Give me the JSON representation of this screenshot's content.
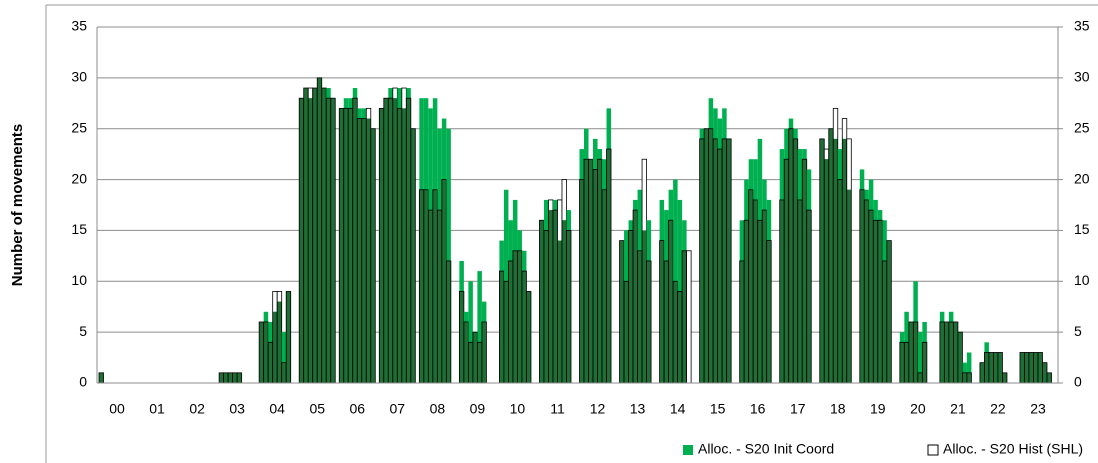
{
  "chart_data": {
    "type": "bar",
    "y_label": "Number of movements",
    "categories": [
      "00",
      "01",
      "02",
      "03",
      "04",
      "05",
      "06",
      "07",
      "08",
      "09",
      "10",
      "11",
      "12",
      "13",
      "14",
      "15",
      "16",
      "17",
      "18",
      "19",
      "20",
      "21",
      "22",
      "23"
    ],
    "series": [
      {
        "name": "Alloc. - S20 Init Coord",
        "color": "#00b050",
        "values": [
          [
            1,
            0,
            0,
            0,
            0,
            0,
            0,
            0
          ],
          [
            0,
            0,
            0,
            0,
            0,
            0,
            0,
            0
          ],
          [
            0,
            0,
            0,
            0,
            0,
            0,
            0,
            0
          ],
          [
            1,
            1,
            1,
            1,
            1,
            0,
            0,
            0
          ],
          [
            6,
            7,
            6,
            7,
            8,
            5,
            9,
            0
          ],
          [
            28,
            29,
            28,
            29,
            30,
            29,
            29,
            28
          ],
          [
            27,
            28,
            28,
            29,
            27,
            27,
            26,
            25
          ],
          [
            27,
            28,
            29,
            28,
            29,
            27,
            29,
            25
          ],
          [
            28,
            28,
            27,
            28,
            25,
            26,
            25,
            0
          ],
          [
            12,
            7,
            10,
            5,
            11,
            8,
            0,
            0
          ],
          [
            14,
            19,
            16,
            18,
            15,
            13,
            9,
            0
          ],
          [
            16,
            18,
            17,
            18,
            14,
            16,
            17,
            0
          ],
          [
            23,
            25,
            22,
            24,
            23,
            22,
            27,
            0
          ],
          [
            14,
            15,
            16,
            18,
            19,
            15,
            16,
            0
          ],
          [
            18,
            17,
            19,
            20,
            18,
            16,
            0,
            0
          ],
          [
            25,
            25,
            28,
            27,
            26,
            27,
            24,
            0
          ],
          [
            16,
            20,
            22,
            22,
            24,
            20,
            18,
            0
          ],
          [
            23,
            25,
            26,
            25,
            23,
            23,
            21,
            0
          ],
          [
            24,
            22,
            25,
            24,
            23,
            24,
            19,
            0
          ],
          [
            21,
            19,
            20,
            18,
            17,
            16,
            14,
            0
          ],
          [
            5,
            7,
            6,
            10,
            5,
            6,
            0,
            0
          ],
          [
            7,
            6,
            7,
            6,
            5,
            2,
            3,
            0
          ],
          [
            2,
            4,
            3,
            3,
            3,
            1,
            0,
            0
          ],
          [
            3,
            3,
            3,
            3,
            3,
            2,
            1,
            0
          ]
        ]
      },
      {
        "name": "Alloc. - S20 Hist (SHL)",
        "color": "#ffffff",
        "overlap_color": "#1e6e35",
        "values": [
          [
            1,
            0,
            0,
            0,
            0,
            0,
            0,
            0
          ],
          [
            0,
            0,
            0,
            0,
            0,
            0,
            0,
            0
          ],
          [
            0,
            0,
            0,
            0,
            0,
            0,
            0,
            0
          ],
          [
            1,
            1,
            1,
            1,
            1,
            0,
            0,
            0
          ],
          [
            6,
            6,
            4,
            9,
            9,
            2,
            9,
            0
          ],
          [
            28,
            29,
            29,
            29,
            30,
            29,
            28,
            28
          ],
          [
            27,
            27,
            27,
            28,
            26,
            26,
            27,
            25
          ],
          [
            27,
            28,
            28,
            29,
            27,
            29,
            28,
            25
          ],
          [
            19,
            19,
            17,
            19,
            17,
            20,
            12,
            0
          ],
          [
            9,
            6,
            4,
            5,
            4,
            6,
            0,
            0
          ],
          [
            11,
            10,
            12,
            13,
            13,
            11,
            9,
            0
          ],
          [
            16,
            15,
            18,
            17,
            18,
            20,
            15,
            0
          ],
          [
            20,
            22,
            22,
            21,
            22,
            19,
            23,
            0
          ],
          [
            14,
            10,
            15,
            17,
            13,
            22,
            12,
            0
          ],
          [
            14,
            12,
            16,
            10,
            9,
            13,
            13,
            0
          ],
          [
            24,
            25,
            25,
            24,
            23,
            24,
            24,
            0
          ],
          [
            12,
            16,
            19,
            18,
            16,
            17,
            14,
            0
          ],
          [
            18,
            22,
            25,
            24,
            18,
            22,
            17,
            0
          ],
          [
            24,
            23,
            25,
            27,
            20,
            26,
            24,
            0
          ],
          [
            19,
            18,
            17,
            16,
            16,
            12,
            14,
            0
          ],
          [
            4,
            4,
            6,
            6,
            1,
            4,
            0,
            0
          ],
          [
            6,
            6,
            6,
            6,
            5,
            1,
            1,
            0
          ],
          [
            2,
            3,
            3,
            3,
            3,
            1,
            0,
            0
          ],
          [
            3,
            3,
            3,
            3,
            3,
            2,
            1,
            0
          ]
        ]
      }
    ],
    "ylim": [
      0,
      35
    ],
    "yticks": [
      0,
      5,
      10,
      15,
      20,
      25,
      30,
      35
    ],
    "y2lim": [
      0,
      35
    ],
    "y2ticks": [
      0,
      5,
      10,
      15,
      20,
      25,
      30,
      35
    ],
    "grid": true,
    "legend": "lower right"
  }
}
